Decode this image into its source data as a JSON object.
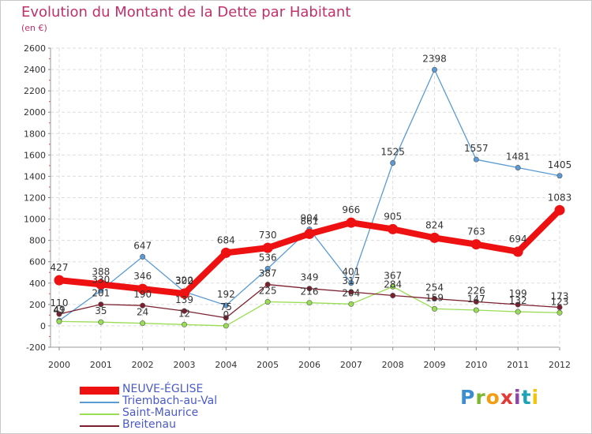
{
  "title": "Evolution du Montant de la Dette par Habitant",
  "subtitle": "(en €)",
  "logo": {
    "text": "Proxiti",
    "colors": [
      "#3b8fd1",
      "#7cb82f",
      "#f39c12",
      "#e53935",
      "#8e44ad",
      "#1ea3b5",
      "#f1c40f"
    ]
  },
  "chart_data": {
    "type": "line",
    "x": [
      "2000",
      "2001",
      "2002",
      "2003",
      "2004",
      "2005",
      "2006",
      "2007",
      "2008",
      "2009",
      "2010",
      "2011",
      "2012"
    ],
    "ylim": [
      -200,
      2600
    ],
    "yticks": [
      "-200",
      "0",
      "200",
      "400",
      "600",
      "800",
      "1000",
      "1200",
      "1400",
      "1600",
      "1800",
      "2000",
      "2200",
      "2400",
      "2600"
    ],
    "grid": true,
    "legend_position": "bottom-left",
    "series": [
      {
        "name": "NEUVE-ÉGLISE",
        "color": "#ee1111",
        "values": [
          427,
          388,
          346,
          302,
          684,
          730,
          861,
          966,
          905,
          824,
          763,
          694,
          1083
        ]
      },
      {
        "name": "Triembach-au-Val",
        "color": "#5b9bd5",
        "values": [
          49,
          330,
          647,
          320,
          192,
          536,
          904,
          401,
          1525,
          2398,
          1557,
          1481,
          1405
        ]
      },
      {
        "name": "Saint-Maurice",
        "color": "#99dd55",
        "values": [
          41,
          35,
          24,
          12,
          0,
          225,
          216,
          204,
          367,
          159,
          147,
          132,
          123
        ]
      },
      {
        "name": "Breitenau",
        "color": "#7b1f2e",
        "values": [
          110,
          201,
          190,
          139,
          75,
          387,
          349,
          317,
          284,
          254,
          226,
          199,
          173
        ]
      }
    ],
    "labels": {
      "NEUVE-ÉGLISE": [
        "427",
        "388",
        "346",
        "302",
        "684",
        "730",
        "861",
        "966",
        "905",
        "824",
        "763",
        "694",
        "1083"
      ],
      "Triembach-au-Val": [
        "49",
        "330",
        "647",
        "320",
        "192",
        "536",
        "904",
        "401",
        "1525",
        "2398",
        "1557",
        "1481",
        "1405"
      ],
      "Saint-Maurice": [
        "41",
        "35",
        "24",
        "12",
        "0",
        "225",
        "216",
        "204",
        "367",
        "159",
        "147",
        "132",
        "123"
      ],
      "Breitenau": [
        "110",
        "201",
        "190",
        "139",
        "75",
        "387",
        "349",
        "317",
        "284",
        "254",
        "226",
        "199",
        "173"
      ]
    }
  }
}
